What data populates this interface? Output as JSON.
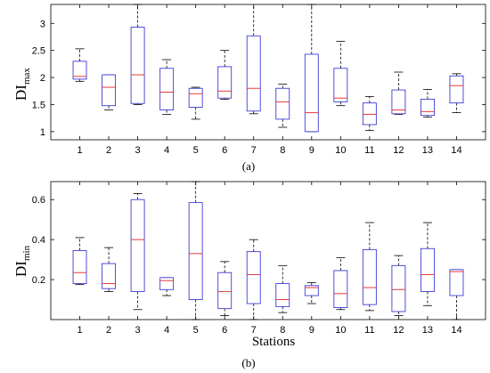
{
  "chart_data": [
    {
      "type": "box",
      "panel_label": "(a)",
      "ylabel": "DI",
      "ylabel_sub": "max",
      "xlabel": "",
      "ylim": [
        0.85,
        3.35
      ],
      "yticks": [
        "1",
        "1.5",
        "2",
        "2.5",
        "3"
      ],
      "categories": [
        "1",
        "2",
        "3",
        "4",
        "5",
        "6",
        "7",
        "8",
        "9",
        "10",
        "11",
        "12",
        "13",
        "14"
      ],
      "colors": {
        "box": "#3d3dd6",
        "median": "#e8393a",
        "whisker": "#000000"
      },
      "boxes": [
        {
          "min": 1.93,
          "q1": 1.97,
          "median": 2.02,
          "q3": 2.3,
          "max": 2.53
        },
        {
          "min": 1.4,
          "q1": 1.48,
          "median": 1.82,
          "q3": 2.05,
          "max": 2.05
        },
        {
          "min": 1.5,
          "q1": 1.52,
          "median": 2.05,
          "q3": 2.93,
          "max": 3.35
        },
        {
          "min": 1.32,
          "q1": 1.4,
          "median": 1.73,
          "q3": 2.17,
          "max": 2.33
        },
        {
          "min": 1.23,
          "q1": 1.45,
          "median": 1.7,
          "q3": 1.8,
          "max": 1.82
        },
        {
          "min": 1.6,
          "q1": 1.62,
          "median": 1.75,
          "q3": 2.2,
          "max": 2.5
        },
        {
          "min": 1.33,
          "q1": 1.38,
          "median": 1.8,
          "q3": 2.77,
          "max": 3.38
        },
        {
          "min": 1.08,
          "q1": 1.23,
          "median": 1.55,
          "q3": 1.8,
          "max": 1.88
        },
        {
          "min": 1.0,
          "q1": 1.0,
          "median": 1.35,
          "q3": 2.43,
          "max": 3.35
        },
        {
          "min": 1.48,
          "q1": 1.55,
          "median": 1.62,
          "q3": 2.17,
          "max": 2.67
        },
        {
          "min": 1.02,
          "q1": 1.13,
          "median": 1.32,
          "q3": 1.53,
          "max": 1.65
        },
        {
          "min": 1.32,
          "q1": 1.33,
          "median": 1.4,
          "q3": 1.77,
          "max": 2.1
        },
        {
          "min": 1.27,
          "q1": 1.3,
          "median": 1.37,
          "q3": 1.6,
          "max": 1.78
        },
        {
          "min": 1.35,
          "q1": 1.53,
          "median": 1.85,
          "q3": 2.03,
          "max": 2.07
        }
      ]
    },
    {
      "type": "box",
      "panel_label": "(b)",
      "ylabel": "DI",
      "ylabel_sub": "min",
      "xlabel": "Stations",
      "ylim": [
        0.0,
        0.69
      ],
      "yticks": [
        "0.2",
        "0.4",
        "0.6"
      ],
      "categories": [
        "1",
        "2",
        "3",
        "4",
        "5",
        "6",
        "7",
        "8",
        "9",
        "10",
        "11",
        "12",
        "13",
        "14"
      ],
      "colors": {
        "box": "#3d3dd6",
        "median": "#e8393a",
        "whisker": "#000000"
      },
      "boxes": [
        {
          "min": 0.175,
          "q1": 0.18,
          "median": 0.235,
          "q3": 0.345,
          "max": 0.41
        },
        {
          "min": 0.14,
          "q1": 0.155,
          "median": 0.18,
          "q3": 0.28,
          "max": 0.36
        },
        {
          "min": 0.05,
          "q1": 0.14,
          "median": 0.4,
          "q3": 0.6,
          "max": 0.63
        },
        {
          "min": 0.12,
          "q1": 0.15,
          "median": 0.195,
          "q3": 0.21,
          "max": 0.21
        },
        {
          "min": 0.0,
          "q1": 0.1,
          "median": 0.33,
          "q3": 0.585,
          "max": 0.69
        },
        {
          "min": 0.02,
          "q1": 0.055,
          "median": 0.14,
          "q3": 0.235,
          "max": 0.29
        },
        {
          "min": 0.0,
          "q1": 0.08,
          "median": 0.225,
          "q3": 0.34,
          "max": 0.4
        },
        {
          "min": 0.035,
          "q1": 0.065,
          "median": 0.1,
          "q3": 0.18,
          "max": 0.27
        },
        {
          "min": 0.08,
          "q1": 0.12,
          "median": 0.16,
          "q3": 0.17,
          "max": 0.185
        },
        {
          "min": 0.05,
          "q1": 0.06,
          "median": 0.13,
          "q3": 0.245,
          "max": 0.31
        },
        {
          "min": 0.045,
          "q1": 0.075,
          "median": 0.16,
          "q3": 0.35,
          "max": 0.485
        },
        {
          "min": 0.02,
          "q1": 0.04,
          "median": 0.15,
          "q3": 0.27,
          "max": 0.32
        },
        {
          "min": 0.07,
          "q1": 0.14,
          "median": 0.225,
          "q3": 0.355,
          "max": 0.485
        },
        {
          "min": 0.0,
          "q1": 0.12,
          "median": 0.24,
          "q3": 0.25,
          "max": 0.25
        }
      ]
    }
  ]
}
